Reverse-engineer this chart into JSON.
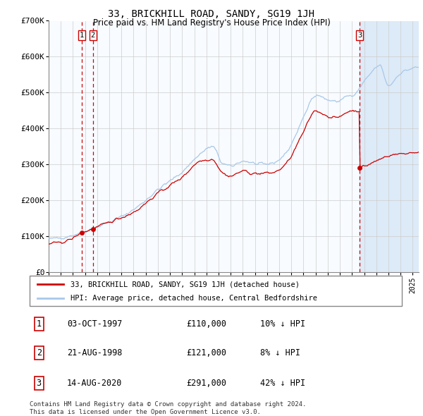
{
  "title": "33, BRICKHILL ROAD, SANDY, SG19 1JH",
  "subtitle": "Price paid vs. HM Land Registry's House Price Index (HPI)",
  "hpi_color": "#a8c8e8",
  "price_color": "#cc0000",
  "sale_dot_color": "#cc0000",
  "vertical_line_color": "#cc0000",
  "background_shaded_color": "#ddeaf8",
  "ylim": [
    0,
    700000
  ],
  "yticks": [
    0,
    100000,
    200000,
    300000,
    400000,
    500000,
    600000,
    700000
  ],
  "ytick_labels": [
    "£0",
    "£100K",
    "£200K",
    "£300K",
    "£400K",
    "£500K",
    "£600K",
    "£700K"
  ],
  "xlim_start": 1995.0,
  "xlim_end": 2025.5,
  "sale_dates": [
    1997.75,
    1998.64,
    2020.62
  ],
  "sale_prices": [
    110000,
    121000,
    291000
  ],
  "sale_labels": [
    "1",
    "2",
    "3"
  ],
  "legend_line1": "33, BRICKHILL ROAD, SANDY, SG19 1JH (detached house)",
  "legend_line2": "HPI: Average price, detached house, Central Bedfordshire",
  "table_rows": [
    {
      "num": "1",
      "date": "03-OCT-1997",
      "price": "£110,000",
      "note": "10% ↓ HPI"
    },
    {
      "num": "2",
      "date": "21-AUG-1998",
      "price": "£121,000",
      "note": "8% ↓ HPI"
    },
    {
      "num": "3",
      "date": "14-AUG-2020",
      "price": "£291,000",
      "note": "42% ↓ HPI"
    }
  ],
  "footer": "Contains HM Land Registry data © Crown copyright and database right 2024.\nThis data is licensed under the Open Government Licence v3.0."
}
